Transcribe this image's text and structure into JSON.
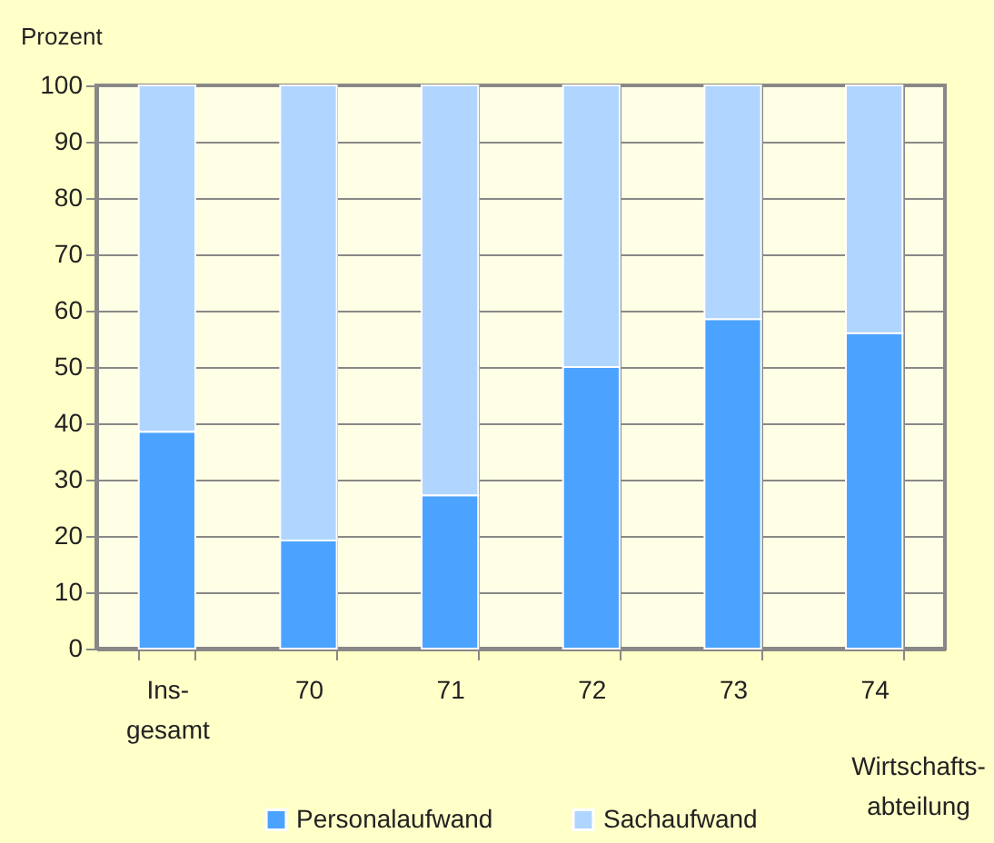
{
  "chart_data": {
    "type": "bar",
    "stacked": true,
    "ylabel": "Prozent",
    "xlabel": "Wirtschafts-\nabteilung",
    "categories": [
      "Ins-\ngesamt",
      "70",
      "71",
      "72",
      "73",
      "74"
    ],
    "series": [
      {
        "name": "Personalaufwand",
        "color": "#4ca3ff",
        "values": [
          38.5,
          19.2,
          27.2,
          50,
          58.5,
          56
        ]
      },
      {
        "name": "Sachaufwand",
        "color": "#b0d5ff",
        "values": [
          61.5,
          80.8,
          72.8,
          50,
          41.5,
          44
        ]
      }
    ],
    "ylim": [
      0,
      100
    ],
    "yticks": [
      0,
      10,
      20,
      30,
      40,
      50,
      60,
      70,
      80,
      90,
      100
    ],
    "grid": true,
    "legend": "bottom"
  }
}
